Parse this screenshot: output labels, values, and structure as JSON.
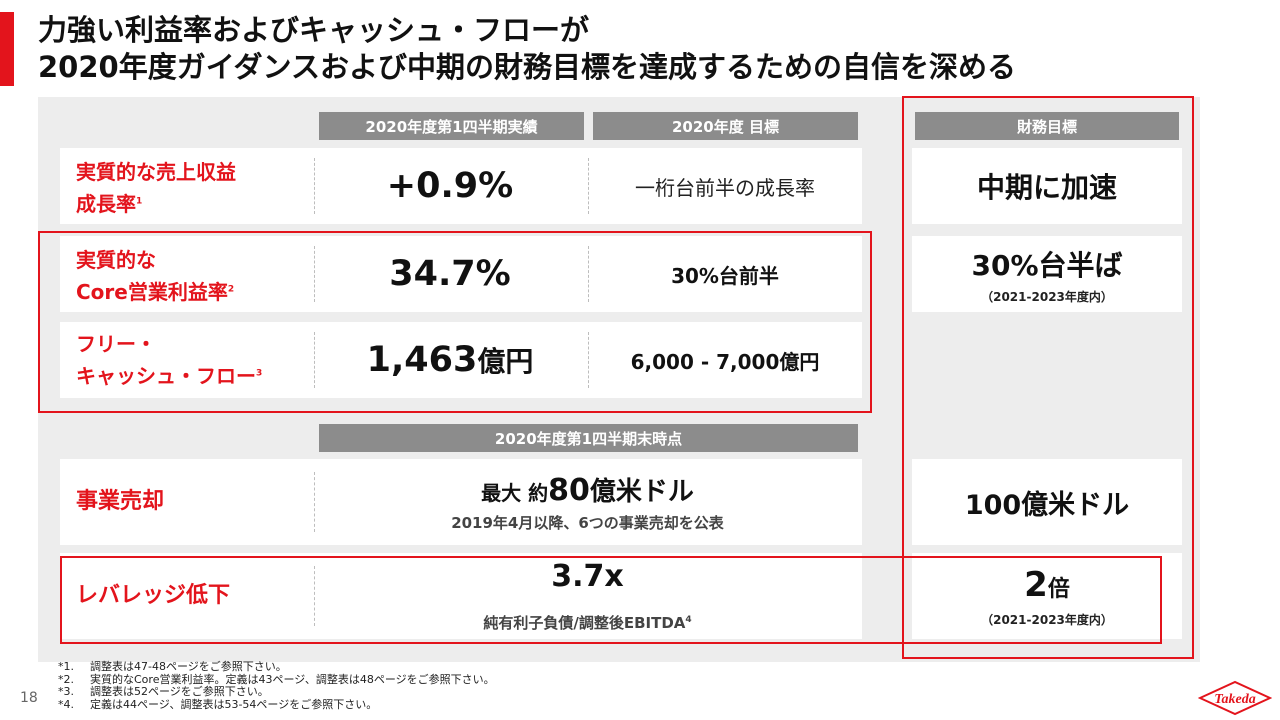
{
  "title": {
    "line1": "力強い利益率およびキャッシュ・フローが",
    "line2": "2020年度ガイダンスおよび中期の財務目標を達成するための自信を深める"
  },
  "headers": {
    "q1_actual": "2020年度第1四半期実績",
    "fy_target": "2020年度 目標",
    "financial_target": "財務目標",
    "q1_end": "2020年度第1四半期末時点"
  },
  "rows": {
    "revenue": {
      "label_line1": "実質的な売上収益",
      "label_line2": "成長率",
      "note": "1",
      "actual": "+0.9%",
      "target": "一桁台前半の成長率",
      "goal": "中期に加速"
    },
    "core_margin": {
      "label_line1": "実質的な",
      "label_line2": "Core営業利益率",
      "note": "2",
      "actual": "34.7%",
      "target": "30%台前半",
      "goal": "30%台半ば",
      "goal_sub": "（2021-2023年度内）"
    },
    "fcf": {
      "label_line1": "フリー・",
      "label_line2": "キャッシュ・フロー",
      "note": "3",
      "actual_num": "1,463",
      "actual_unit": "億円",
      "target": "6,000 - 7,000億円"
    },
    "divestiture": {
      "label": "事業売却",
      "actual_prefix": "最大 約",
      "actual_num": "80",
      "actual_unit": "億米ドル",
      "actual_sub": "2019年4月以降、6つの事業売却を公表",
      "goal": "100億米ドル"
    },
    "leverage": {
      "label": "レバレッジ低下",
      "actual": "3.7x",
      "actual_sub": "純有利子負債/調整後EBITDA",
      "actual_note": "4",
      "goal_num": "2",
      "goal_unit": "倍",
      "goal_sub": "（2021-2023年度内）"
    }
  },
  "footnotes": [
    {
      "mark": "*1.",
      "text": "調整表は47-48ページをご参照下さい。"
    },
    {
      "mark": "*2.",
      "text": "実質的なCore営業利益率。定義は43ページ、調整表は48ページをご参照下さい。"
    },
    {
      "mark": "*3.",
      "text": "調整表は52ページをご参照下さい。"
    },
    {
      "mark": "*4.",
      "text": "定義は44ページ、調整表は53-54ページをご参照下さい。"
    }
  ],
  "page_number": "18",
  "logo_text": "Takeda",
  "colors": {
    "accent": "#e3141c",
    "header_gray": "#8c8c8c",
    "panel_gray": "#ededed"
  }
}
